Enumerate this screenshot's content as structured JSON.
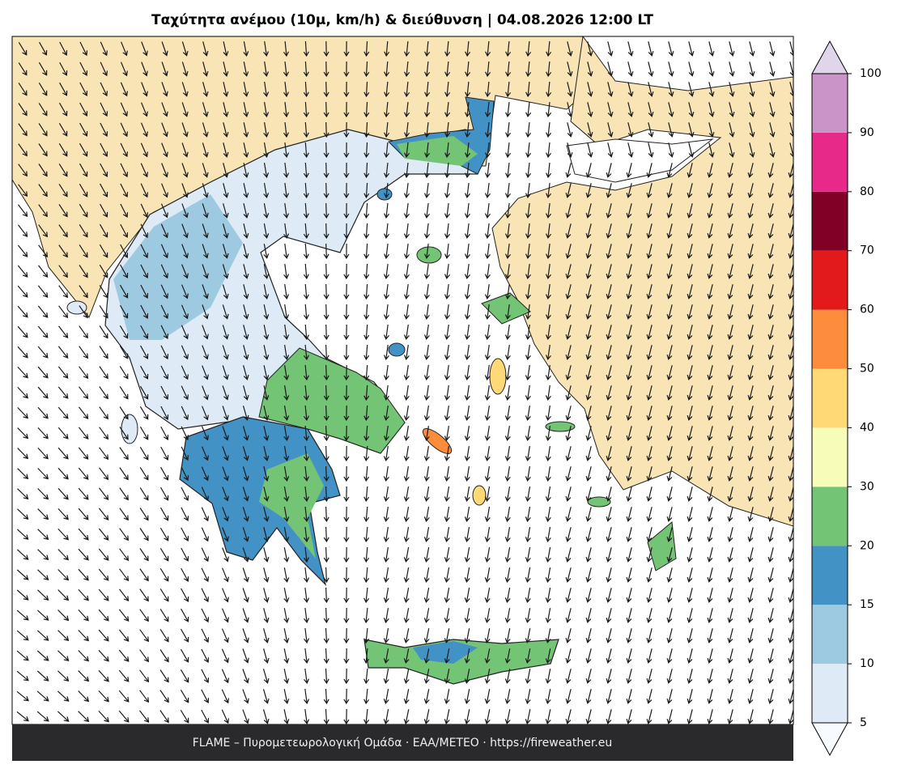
{
  "title": "Ταχύτητα ανέμου (10μ, km/h) & διεύθυνση  |  04.08.2026 12:00 LT",
  "footer": "FLAME – Πυρομετεωρολογική Ομάδα · ΕΑΑ/METEO · https://fireweather.eu",
  "colorbar": {
    "levels": [
      5,
      10,
      15,
      20,
      30,
      40,
      50,
      60,
      70,
      80,
      90,
      100
    ],
    "colors": [
      "#deebf7",
      "#9ecae1",
      "#4292c6",
      "#74c476",
      "#f7fcb9",
      "#fed976",
      "#fd8d3c",
      "#e31a1c",
      "#800026",
      "#e7298a",
      "#c994c7"
    ],
    "under_color": "#f7fbff",
    "over_color": "#e0d6ea"
  }
}
